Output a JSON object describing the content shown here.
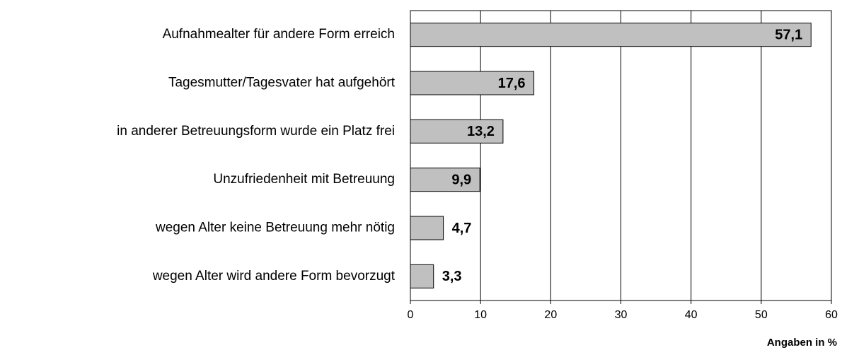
{
  "chart_data": {
    "type": "bar",
    "orientation": "horizontal",
    "categories": [
      "Aufnahmealter für andere Form erreich",
      "Tagesmutter/Tagesvater hat aufgehört",
      "in anderer Betreuungsform wurde ein Platz frei",
      "Unzufriedenheit mit Betreuung",
      "wegen Alter keine Betreuung mehr nötig",
      "wegen Alter wird andere Form bevorzugt"
    ],
    "values": [
      57.1,
      17.6,
      13.2,
      9.9,
      4.7,
      3.3
    ],
    "value_labels": [
      "57,1",
      "17,6",
      "13,2",
      "9,9",
      "4,7",
      "3,3"
    ],
    "color": "#c0c0c0",
    "xlim": [
      0,
      60
    ],
    "xticks": [
      0,
      10,
      20,
      30,
      40,
      50,
      60
    ],
    "x_label": "Angaben in %",
    "grid": true
  }
}
